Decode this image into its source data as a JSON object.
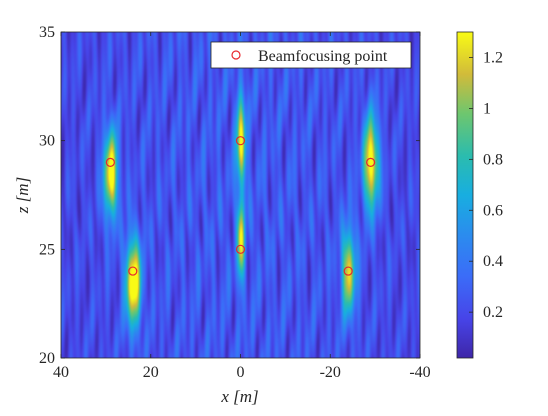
{
  "chart_data": {
    "type": "heatmap",
    "xlabel": "x [m]",
    "ylabel": "z [m]",
    "xlim": [
      40,
      -40
    ],
    "ylim": [
      20,
      35
    ],
    "x_reversed": true,
    "x_ticks": [
      "40",
      "20",
      "0",
      "-20",
      "-40"
    ],
    "x_tick_values": [
      40,
      20,
      0,
      -20,
      -40
    ],
    "y_ticks": [
      "20",
      "25",
      "30",
      "35"
    ],
    "y_tick_values": [
      20,
      25,
      30,
      35
    ],
    "colormap": "parula",
    "colorbar": {
      "range": [
        0.02,
        1.3
      ],
      "ticks": [
        "0.2",
        "0.4",
        "0.6",
        "0.8",
        "1",
        "1.2"
      ],
      "tick_values": [
        0.2,
        0.4,
        0.6,
        0.8,
        1.0,
        1.2
      ]
    },
    "legend": {
      "placement": "top-right",
      "label": "Beamfocusing point",
      "marker_color": "#e8282e"
    },
    "hotspots": [
      {
        "x": 29,
        "z": 28.5,
        "peak": 1.2,
        "sx": 1.1,
        "sz": 1.4
      },
      {
        "x": 24,
        "z": 23.5,
        "peak": 1.28,
        "sx": 1.2,
        "sz": 1.4
      },
      {
        "x": 0,
        "z": 30.0,
        "peak": 1.1,
        "sx": 0.7,
        "sz": 1.4
      },
      {
        "x": 0,
        "z": 25.5,
        "peak": 1.0,
        "sx": 0.6,
        "sz": 1.3
      },
      {
        "x": -24,
        "z": 24.0,
        "peak": 1.0,
        "sx": 1.1,
        "sz": 1.4
      },
      {
        "x": -29,
        "z": 29.0,
        "peak": 1.2,
        "sx": 1.2,
        "sz": 1.5
      }
    ],
    "beamfocusing_points": [
      {
        "x": 29,
        "z": 29
      },
      {
        "x": 24,
        "z": 24
      },
      {
        "x": 0,
        "z": 30
      },
      {
        "x": 0,
        "z": 25
      },
      {
        "x": -24,
        "z": 24
      },
      {
        "x": -29,
        "z": 29
      }
    ]
  }
}
